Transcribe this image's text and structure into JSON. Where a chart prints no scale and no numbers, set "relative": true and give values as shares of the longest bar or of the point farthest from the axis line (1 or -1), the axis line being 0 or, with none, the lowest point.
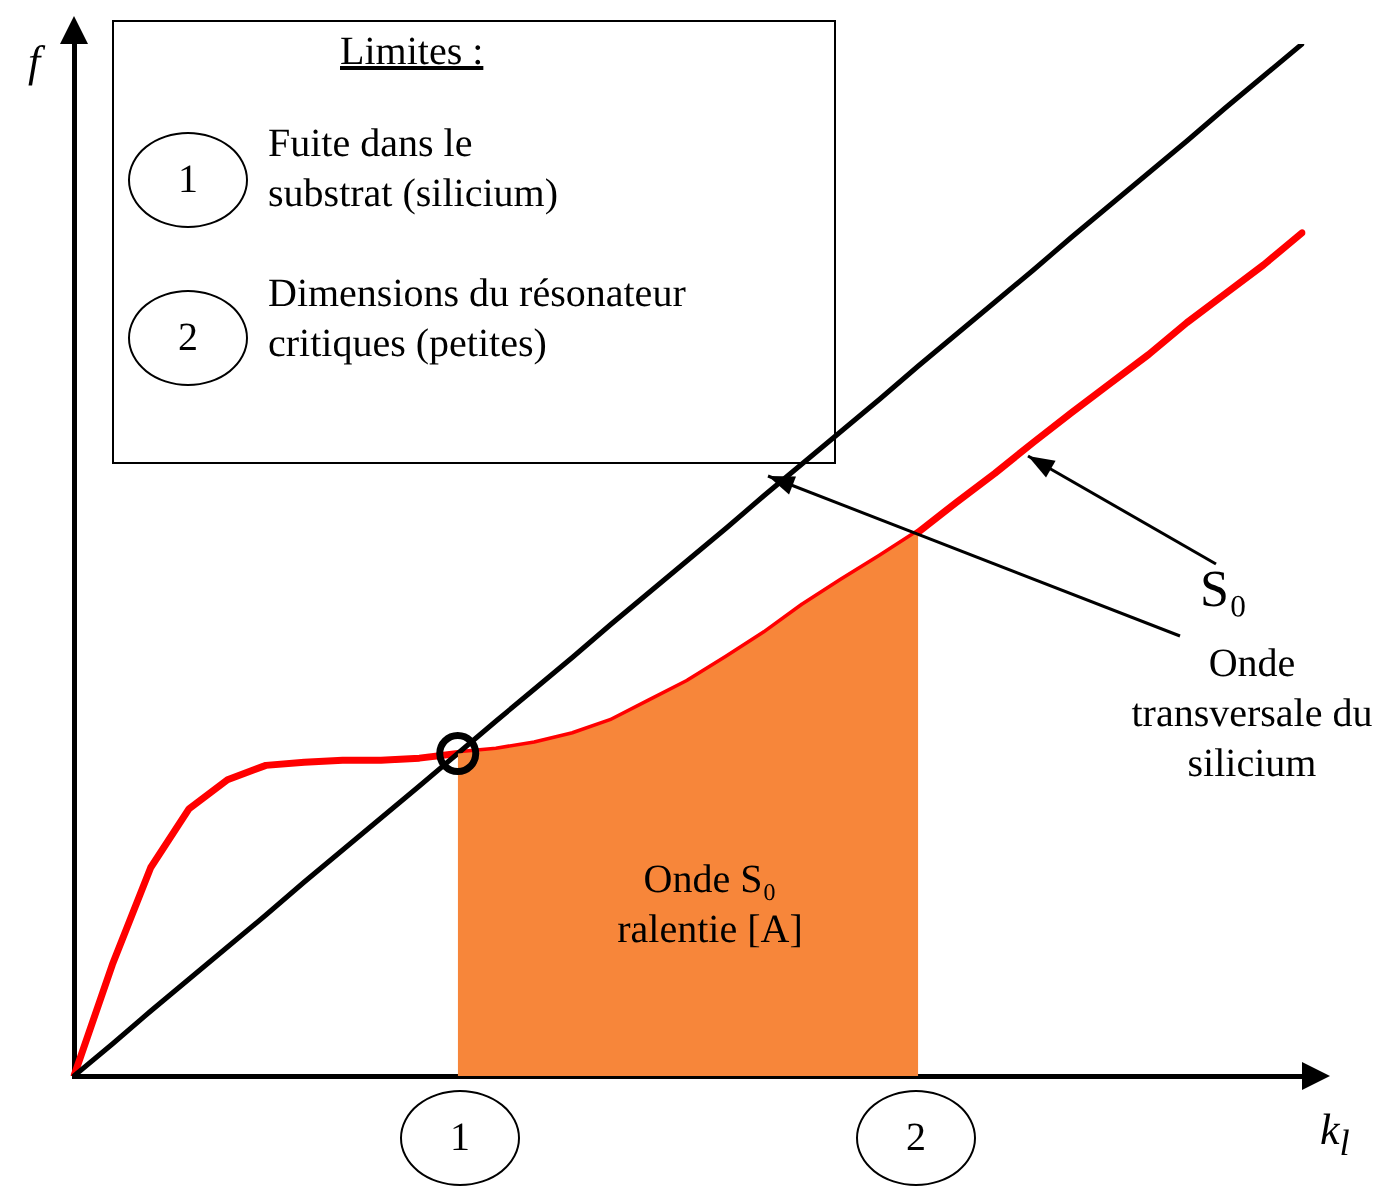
{
  "chart_data": {
    "type": "line",
    "relative": true,
    "xlabel": "k$_{l}$",
    "ylabel": "f",
    "grid": false,
    "legend": false,
    "tick_labels": false,
    "marker": "none",
    "categories": [
      null,
      null,
      null,
      null,
      null,
      null,
      null,
      null,
      null,
      null,
      null,
      null,
      null,
      null,
      null,
      null,
      null,
      null,
      null,
      null,
      null,
      null,
      null,
      null,
      null,
      null,
      null,
      null,
      null,
      null,
      null,
      null,
      null
    ],
    "series": [
      {
        "type": "area",
        "color": "#f7863a",
        "values": [
          null,
          null,
          null,
          null,
          null,
          null,
          null,
          null,
          null,
          null,
          0.3125,
          0.316,
          0.322,
          0.331,
          0.344,
          0.363,
          0.382,
          0.405,
          0.429,
          0.456,
          0.48,
          0.503,
          0.527,
          null,
          null,
          null,
          null,
          null,
          null,
          null,
          null,
          null,
          null
        ]
      },
      {
        "type": "line",
        "color": "#000000",
        "values": [
          0,
          0.031,
          0.063,
          0.094,
          0.125,
          0.156,
          0.188,
          0.219,
          0.25,
          0.281,
          0.3125,
          0.344,
          0.375,
          0.406,
          0.438,
          0.469,
          0.5,
          0.531,
          0.563,
          0.594,
          0.625,
          0.656,
          0.688,
          0.719,
          0.75,
          0.781,
          0.813,
          0.844,
          0.875,
          0.906,
          0.938,
          0.969,
          1
        ]
      },
      {
        "type": "line",
        "color": "#ff0000",
        "values": [
          0,
          0.108,
          0.202,
          0.259,
          0.287,
          0.301,
          0.304,
          0.306,
          0.306,
          0.308,
          0.3125,
          0.316,
          0.322,
          0.331,
          0.344,
          0.363,
          0.382,
          0.405,
          0.429,
          0.456,
          0.48,
          0.503,
          0.527,
          0.556,
          0.584,
          0.614,
          0.643,
          0.671,
          0.699,
          0.73,
          0.758,
          0.786,
          0.817
        ]
      }
    ],
    "annotations": [
      "Limites :",
      "1",
      "Fuite dans le substrat (silicium)",
      "2",
      "Dimensions du résonateur critiques (petites)",
      "Onde S₀ ralentie [A]",
      "S₀",
      "Onde transversale du silicium",
      "1",
      "2"
    ]
  }
}
